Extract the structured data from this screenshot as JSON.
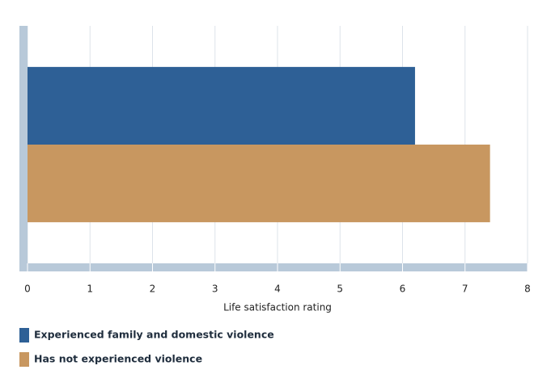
{
  "chart_data": {
    "type": "bar",
    "orientation": "horizontal",
    "categories": [
      null
    ],
    "series": [
      {
        "name": "Experienced family and domestic violence",
        "color": "#2e6096",
        "values": [
          6.2
        ]
      },
      {
        "name": "Has not experienced violence",
        "color": "#c89760",
        "values": [
          7.4
        ]
      }
    ],
    "xlabel": "Life satisfaction rating",
    "xlim": [
      0,
      8
    ],
    "xticks": [
      0,
      1,
      2,
      3,
      4,
      5,
      6,
      7,
      8
    ],
    "grid": true,
    "legend": "bottom"
  }
}
